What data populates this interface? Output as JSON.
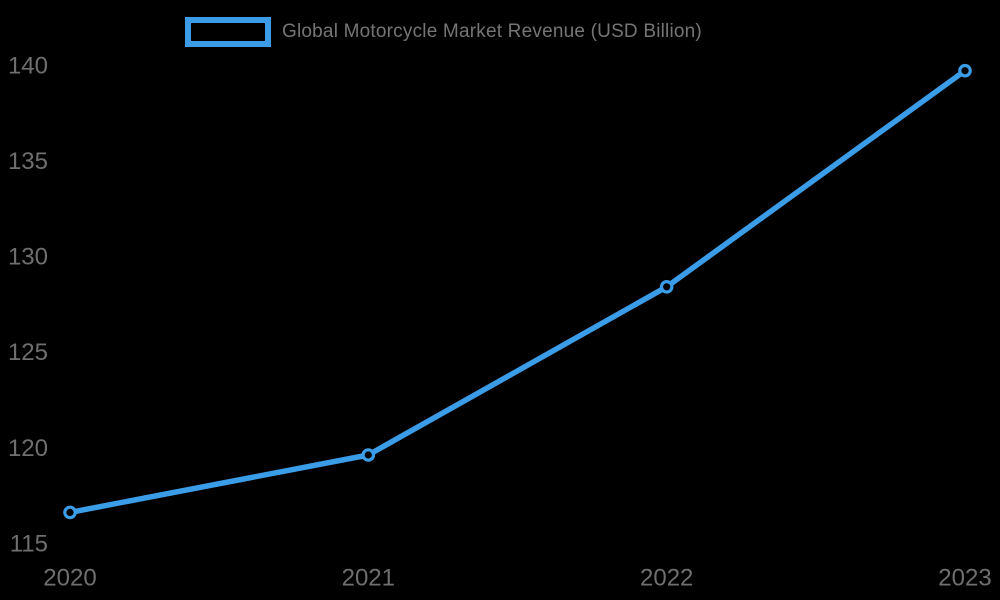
{
  "legend": {
    "label": "Global Motorcycle Market Revenue (USD Billion)"
  },
  "colors": {
    "background": "#000000",
    "line": "#3B9CE8",
    "marker_fill": "#000000",
    "tick_text": "#6F6F6F",
    "legend_text": "#757575"
  },
  "chart_data": {
    "type": "line",
    "title": "",
    "xlabel": "",
    "ylabel": "",
    "categories": [
      "2020",
      "2021",
      "2022",
      "2023"
    ],
    "series": [
      {
        "name": "Global Motorcycle Market Revenue (USD Billion)",
        "values": [
          116.6,
          119.6,
          128.4,
          139.7
        ]
      }
    ],
    "ylim": [
      115,
      140
    ],
    "yticks": [
      115,
      120,
      125,
      130,
      135,
      140
    ],
    "grid": false,
    "legend_position": "top-center",
    "legend_swatch": "open-rectangle",
    "marker": "open-circle"
  }
}
